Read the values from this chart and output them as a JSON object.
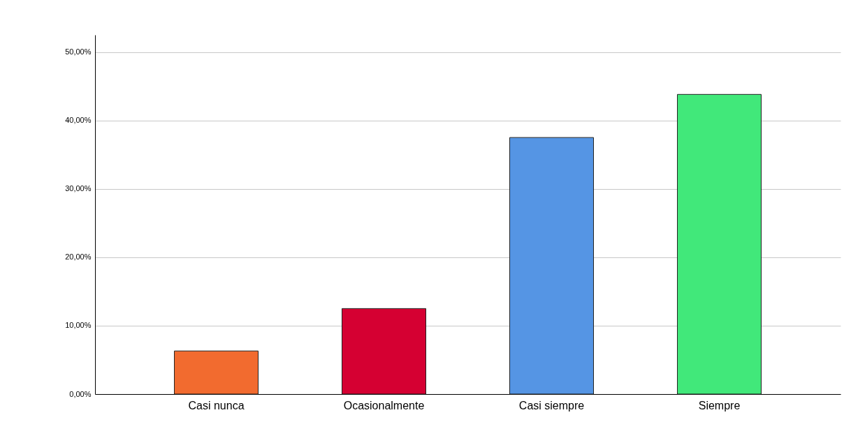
{
  "chart_data": {
    "type": "bar",
    "categories": [
      "Casi nunca",
      "Ocasionalmente",
      "Casi siempre",
      "Siempre"
    ],
    "values": [
      6.3,
      12.5,
      37.5,
      43.8
    ],
    "colors": [
      "#f26b2f",
      "#d50032",
      "#5595e4",
      "#41e87a"
    ],
    "ylim": [
      0,
      52.5
    ],
    "yticks": [
      {
        "value": 0,
        "label": "0,00%"
      },
      {
        "value": 10,
        "label": "10,00%"
      },
      {
        "value": 20,
        "label": "20,00%"
      },
      {
        "value": 30,
        "label": "30,00%"
      },
      {
        "value": 40,
        "label": "40,00%"
      },
      {
        "value": 50,
        "label": "50,00%"
      }
    ],
    "grid": "y"
  }
}
